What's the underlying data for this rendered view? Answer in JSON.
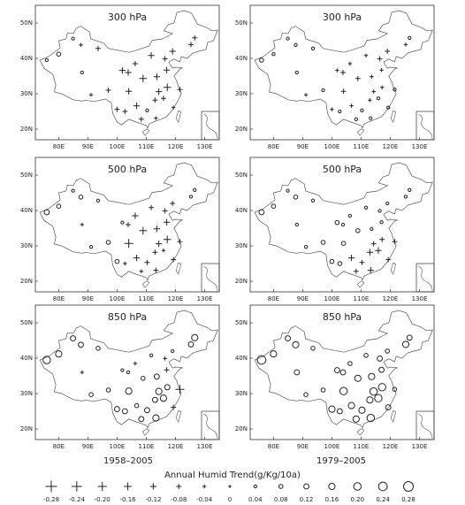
{
  "legend": {
    "title": "Annual Humid Trend(g/Kg/10a)",
    "values": [
      {
        "value": -0.28,
        "label": "-0.28"
      },
      {
        "value": -0.24,
        "label": "-0.24"
      },
      {
        "value": -0.2,
        "label": "-0.20"
      },
      {
        "value": -0.16,
        "label": "-0.16"
      },
      {
        "value": -0.12,
        "label": "-0.12"
      },
      {
        "value": -0.08,
        "label": "-0.08"
      },
      {
        "value": -0.04,
        "label": "-0.04"
      },
      {
        "value": 0,
        "label": "0"
      },
      {
        "value": 0.04,
        "label": "0.04"
      },
      {
        "value": 0.08,
        "label": "0.08"
      },
      {
        "value": 0.12,
        "label": "0.12"
      },
      {
        "value": 0.16,
        "label": "0.16"
      },
      {
        "value": 0.2,
        "label": "0.20"
      },
      {
        "value": 0.24,
        "label": "0.24"
      },
      {
        "value": 0.28,
        "label": "0.28"
      }
    ]
  },
  "column_labels": [
    "1958–2005",
    "1979–2005"
  ],
  "chart_data": [
    {
      "type": "scatter",
      "title": "300 hPa",
      "color": "#222222",
      "xlim": [
        72,
        135
      ],
      "ylim": [
        17,
        55
      ],
      "xticks": [
        {
          "value": 80,
          "label": "80E"
        },
        {
          "value": 90,
          "label": "90E"
        },
        {
          "value": 100,
          "label": "100E"
        },
        {
          "value": 110,
          "label": "110E"
        },
        {
          "value": 120,
          "label": "120E"
        },
        {
          "value": 130,
          "label": "130E"
        }
      ],
      "yticks": [
        {
          "value": 20,
          "label": "20N"
        },
        {
          "value": 30,
          "label": "30N"
        },
        {
          "value": 40,
          "label": "40N"
        },
        {
          "value": 50,
          "label": "50N"
        }
      ],
      "x": [
        75.9,
        80,
        87.6,
        84.9,
        93.5,
        88,
        91.1,
        97,
        101.8,
        103.8,
        106.2,
        111.7,
        116.4,
        117.2,
        121.5,
        113.3,
        108.3,
        106.7,
        104,
        102.7,
        114.3,
        113,
        117,
        125.3,
        126.6,
        119,
        108.9,
        113.6,
        110.3,
        115.9,
        119.3,
        100
      ],
      "y": [
        39.5,
        41.2,
        43.8,
        45.6,
        42.8,
        36,
        29.7,
        31,
        36.6,
        36,
        38.5,
        40.8,
        39.9,
        31.8,
        31.2,
        23.1,
        22.8,
        26.6,
        30.7,
        25,
        30.6,
        28.2,
        36.7,
        43.9,
        45.8,
        42,
        34.3,
        34.8,
        25.3,
        28.7,
        26.1,
        25.6
      ],
      "values": [
        0.04,
        0.08,
        -0.04,
        0.04,
        -0.08,
        0.04,
        -0.04,
        -0.08,
        -0.12,
        -0.12,
        -0.08,
        -0.12,
        -0.08,
        -0.16,
        -0.08,
        -0.04,
        -0.08,
        -0.12,
        -0.12,
        -0.08,
        -0.12,
        -0.08,
        -0.12,
        -0.08,
        -0.08,
        -0.12,
        -0.16,
        -0.12,
        0.04,
        -0.08,
        -0.04,
        -0.08
      ]
    },
    {
      "type": "scatter",
      "title": "300 hPa",
      "color": "#222222",
      "xlim": [
        72,
        135
      ],
      "ylim": [
        17,
        55
      ],
      "xticks": [
        {
          "value": 80,
          "label": "80E"
        },
        {
          "value": 90,
          "label": "90E"
        },
        {
          "value": 100,
          "label": "100E"
        },
        {
          "value": 110,
          "label": "110E"
        },
        {
          "value": 120,
          "label": "120E"
        },
        {
          "value": 130,
          "label": "130E"
        }
      ],
      "yticks": [
        {
          "value": 20,
          "label": "20N"
        },
        {
          "value": 30,
          "label": "30N"
        },
        {
          "value": 40,
          "label": "40N"
        },
        {
          "value": 50,
          "label": "50N"
        }
      ],
      "x": [
        75.9,
        80,
        87.6,
        84.9,
        93.5,
        88,
        91.1,
        97,
        101.8,
        103.8,
        106.2,
        111.7,
        116.4,
        117.2,
        121.5,
        113.3,
        108.3,
        106.7,
        104,
        102.7,
        114.3,
        113,
        117,
        125.3,
        126.6,
        119,
        108.9,
        113.6,
        110.3,
        115.9,
        119.3,
        100
      ],
      "y": [
        39.5,
        41.2,
        43.8,
        45.6,
        42.8,
        36,
        29.7,
        31,
        36.6,
        36,
        38.5,
        40.8,
        39.9,
        31.8,
        31.2,
        23.1,
        22.8,
        26.6,
        30.7,
        25,
        30.6,
        28.2,
        36.7,
        43.9,
        45.8,
        42,
        34.3,
        34.8,
        25.3,
        28.7,
        26.1,
        25.6
      ],
      "values": [
        0.08,
        0.04,
        0.04,
        0.04,
        0.04,
        0.04,
        -0.04,
        0.04,
        -0.04,
        -0.08,
        -0.04,
        -0.04,
        -0.08,
        -0.04,
        0.04,
        0.04,
        0.04,
        -0.04,
        -0.08,
        0.04,
        -0.04,
        -0.04,
        -0.04,
        -0.04,
        0.04,
        -0.08,
        -0.08,
        -0.04,
        0.04,
        0.04,
        0.04,
        -0.04
      ]
    },
    {
      "type": "scatter",
      "title": "500 hPa",
      "color": "#222222",
      "xlim": [
        72,
        135
      ],
      "ylim": [
        17,
        55
      ],
      "xticks": [
        {
          "value": 80,
          "label": "80E"
        },
        {
          "value": 90,
          "label": "90E"
        },
        {
          "value": 100,
          "label": "100E"
        },
        {
          "value": 110,
          "label": "110E"
        },
        {
          "value": 120,
          "label": "120E"
        },
        {
          "value": 130,
          "label": "130E"
        }
      ],
      "yticks": [
        {
          "value": 20,
          "label": "20N"
        },
        {
          "value": 30,
          "label": "30N"
        },
        {
          "value": 40,
          "label": "40N"
        },
        {
          "value": 50,
          "label": "50N"
        }
      ],
      "x": [
        75.9,
        80,
        87.6,
        84.9,
        93.5,
        88,
        91.1,
        97,
        101.8,
        103.8,
        106.2,
        111.7,
        116.4,
        117.2,
        121.5,
        113.3,
        108.3,
        106.7,
        104,
        102.7,
        114.3,
        113,
        117,
        125.3,
        126.6,
        119,
        108.9,
        113.6,
        110.3,
        115.9,
        119.3,
        100
      ],
      "y": [
        39.5,
        41.2,
        43.8,
        45.6,
        42.8,
        36,
        29.7,
        31,
        36.6,
        36,
        38.5,
        40.8,
        39.9,
        31.8,
        31.2,
        23.1,
        22.8,
        26.6,
        30.7,
        25,
        30.6,
        28.2,
        36.7,
        43.9,
        45.8,
        42,
        34.3,
        34.8,
        25.3,
        28.7,
        26.1,
        25.6
      ],
      "values": [
        0.12,
        0.08,
        0.08,
        0.04,
        0.04,
        -0.04,
        0.04,
        0.08,
        0.04,
        -0.08,
        -0.12,
        -0.08,
        -0.08,
        -0.16,
        -0.08,
        -0.08,
        -0.04,
        -0.12,
        -0.2,
        -0.04,
        -0.12,
        -0.08,
        -0.12,
        0.04,
        0.04,
        -0.08,
        -0.16,
        -0.12,
        -0.08,
        -0.04,
        -0.08,
        0.08
      ]
    },
    {
      "type": "scatter",
      "title": "500 hPa",
      "color": "#222222",
      "xlim": [
        72,
        135
      ],
      "ylim": [
        17,
        55
      ],
      "xticks": [
        {
          "value": 80,
          "label": "80E"
        },
        {
          "value": 90,
          "label": "90E"
        },
        {
          "value": 100,
          "label": "100E"
        },
        {
          "value": 110,
          "label": "110E"
        },
        {
          "value": 120,
          "label": "120E"
        },
        {
          "value": 130,
          "label": "130E"
        }
      ],
      "yticks": [
        {
          "value": 20,
          "label": "20N"
        },
        {
          "value": 30,
          "label": "30N"
        },
        {
          "value": 40,
          "label": "40N"
        },
        {
          "value": 50,
          "label": "50N"
        }
      ],
      "x": [
        75.9,
        80,
        87.6,
        84.9,
        93.5,
        88,
        91.1,
        97,
        101.8,
        103.8,
        106.2,
        111.7,
        116.4,
        117.2,
        121.5,
        113.3,
        108.3,
        106.7,
        104,
        102.7,
        114.3,
        113,
        117,
        125.3,
        126.6,
        119,
        108.9,
        113.6,
        110.3,
        115.9,
        119.3,
        100
      ],
      "y": [
        39.5,
        41.2,
        43.8,
        45.6,
        42.8,
        36,
        29.7,
        31,
        36.6,
        36,
        38.5,
        40.8,
        39.9,
        31.8,
        31.2,
        23.1,
        22.8,
        26.6,
        30.7,
        25,
        30.6,
        28.2,
        36.7,
        43.9,
        45.8,
        42,
        34.3,
        34.8,
        25.3,
        28.7,
        26.1,
        25.6
      ],
      "values": [
        0.12,
        0.08,
        0.08,
        0.04,
        0.04,
        0.04,
        0.04,
        0.08,
        0.08,
        0.04,
        0.04,
        0.04,
        0.04,
        -0.08,
        -0.08,
        -0.12,
        -0.08,
        -0.12,
        0.08,
        0.08,
        -0.08,
        -0.12,
        0.04,
        0.04,
        0.04,
        0.04,
        0.08,
        0.04,
        -0.08,
        -0.12,
        -0.08,
        0.08
      ]
    },
    {
      "type": "scatter",
      "title": "850 hPa",
      "color": "#222222",
      "xlim": [
        72,
        135
      ],
      "ylim": [
        17,
        55
      ],
      "xticks": [
        {
          "value": 80,
          "label": "80E"
        },
        {
          "value": 90,
          "label": "90E"
        },
        {
          "value": 100,
          "label": "100E"
        },
        {
          "value": 110,
          "label": "110E"
        },
        {
          "value": 120,
          "label": "120E"
        },
        {
          "value": 130,
          "label": "130E"
        }
      ],
      "yticks": [
        {
          "value": 20,
          "label": "20N"
        },
        {
          "value": 30,
          "label": "30N"
        },
        {
          "value": 40,
          "label": "40N"
        },
        {
          "value": 50,
          "label": "50N"
        }
      ],
      "x": [
        75.9,
        80,
        87.6,
        84.9,
        93.5,
        88,
        91.1,
        97,
        101.8,
        103.8,
        106.2,
        111.7,
        116.4,
        117.2,
        121.5,
        113.3,
        108.3,
        106.7,
        104,
        102.7,
        114.3,
        113,
        117,
        125.3,
        126.6,
        119,
        108.9,
        113.6,
        110.3,
        115.9,
        119.3,
        100
      ],
      "y": [
        39.5,
        41.2,
        43.8,
        45.6,
        42.8,
        36,
        29.7,
        31,
        36.6,
        36,
        38.5,
        40.8,
        39.9,
        31.8,
        31.2,
        23.1,
        22.8,
        26.6,
        30.7,
        25,
        30.6,
        28.2,
        36.7,
        43.9,
        45.8,
        42,
        34.3,
        34.8,
        25.3,
        28.7,
        26.1,
        25.6
      ],
      "values": [
        0.2,
        0.16,
        0.12,
        0.12,
        0.08,
        -0.04,
        0.08,
        0.08,
        0.04,
        0.04,
        -0.04,
        0.04,
        -0.04,
        0.12,
        -0.2,
        0.16,
        0.12,
        0.08,
        0.16,
        0.12,
        0.16,
        0.12,
        -0.08,
        0.12,
        0.16,
        0.04,
        0.08,
        0.12,
        0.12,
        0.16,
        -0.08,
        0.12
      ]
    },
    {
      "type": "scatter",
      "title": "850 hPa",
      "color": "#222222",
      "xlim": [
        72,
        135
      ],
      "ylim": [
        17,
        55
      ],
      "xticks": [
        {
          "value": 80,
          "label": "80E"
        },
        {
          "value": 90,
          "label": "90E"
        },
        {
          "value": 100,
          "label": "100E"
        },
        {
          "value": 110,
          "label": "110E"
        },
        {
          "value": 120,
          "label": "120E"
        },
        {
          "value": 130,
          "label": "130E"
        }
      ],
      "yticks": [
        {
          "value": 20,
          "label": "20N"
        },
        {
          "value": 30,
          "label": "30N"
        },
        {
          "value": 40,
          "label": "40N"
        },
        {
          "value": 50,
          "label": "50N"
        }
      ],
      "x": [
        75.9,
        80,
        87.6,
        84.9,
        93.5,
        88,
        91.1,
        97,
        101.8,
        103.8,
        106.2,
        111.7,
        116.4,
        117.2,
        121.5,
        113.3,
        108.3,
        106.7,
        104,
        102.7,
        114.3,
        113,
        117,
        125.3,
        126.6,
        119,
        108.9,
        113.6,
        110.3,
        115.9,
        119.3,
        100
      ],
      "y": [
        39.5,
        41.2,
        43.8,
        45.6,
        42.8,
        36,
        29.7,
        31,
        36.6,
        36,
        38.5,
        40.8,
        39.9,
        31.8,
        31.2,
        23.1,
        22.8,
        26.6,
        30.7,
        25,
        30.6,
        28.2,
        36.7,
        43.9,
        45.8,
        42,
        34.3,
        34.8,
        25.3,
        28.7,
        26.1,
        25.6
      ],
      "values": [
        0.24,
        0.16,
        0.16,
        0.12,
        0.08,
        0.12,
        0.08,
        0.08,
        0.12,
        0.12,
        0.08,
        0.08,
        0.12,
        0.2,
        0.08,
        0.2,
        0.16,
        0.16,
        0.2,
        0.12,
        0.2,
        0.16,
        0.12,
        0.16,
        0.12,
        0.08,
        0.16,
        0.16,
        0.16,
        0.2,
        0.12,
        0.16
      ]
    }
  ]
}
